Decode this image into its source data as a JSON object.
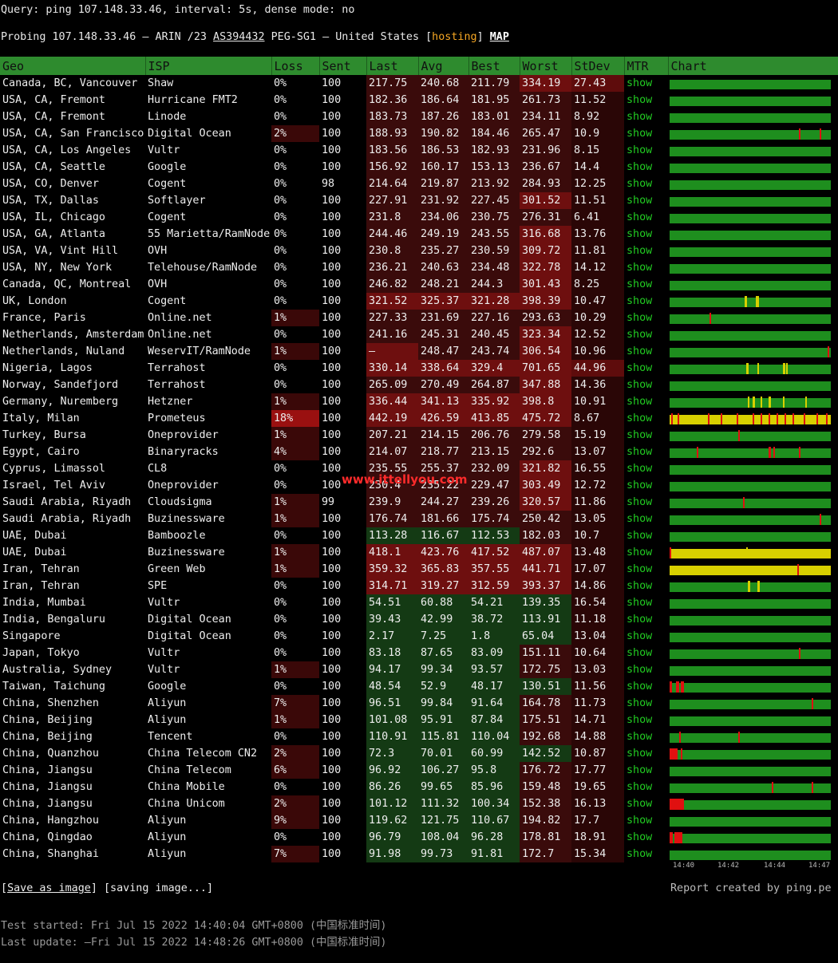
{
  "query_line": "Query: ping 107.148.33.46, interval: 5s, dense mode: no",
  "probe": {
    "prefix": "Probing 107.148.33.46 – ARIN /23 ",
    "as": "AS394432",
    "middle": " PEG-SG1 – United States [",
    "hosting": "hosting",
    "close": "] ",
    "map": "MAP"
  },
  "columns": [
    "Geo",
    "ISP",
    "Loss",
    "Sent",
    "Last",
    "Avg",
    "Best",
    "Worst",
    "StDev",
    "MTR",
    "Chart"
  ],
  "mtr_label": "show",
  "colors": {
    "header_bg": "#2e8b2e",
    "green_bg": "#163816",
    "red_bg": "#6e0f0f",
    "loss_bg": "#8a0f0f",
    "chart_green": "#1e8e1e",
    "chart_red": "#e01010",
    "chart_yellow": "#d8d000",
    "link_green": "#22cc22",
    "hosting": "#f5a623"
  },
  "rows": [
    {
      "geo": "Canada, BC, Vancouver",
      "isp": "Shaw",
      "loss": "0%",
      "sent": "100",
      "last": "217.75",
      "avg": "240.68",
      "best": "211.79",
      "worst": "334.19",
      "stdev": "27.43"
    },
    {
      "geo": "USA, CA, Fremont",
      "isp": "Hurricane FMT2",
      "loss": "0%",
      "sent": "100",
      "last": "182.36",
      "avg": "186.64",
      "best": "181.95",
      "worst": "261.73",
      "stdev": "11.52"
    },
    {
      "geo": "USA, CA, Fremont",
      "isp": "Linode",
      "loss": "0%",
      "sent": "100",
      "last": "183.73",
      "avg": "187.26",
      "best": "183.01",
      "worst": "234.11",
      "stdev": "8.92"
    },
    {
      "geo": "USA, CA, San Francisco",
      "isp": "Digital Ocean",
      "loss": "2%",
      "sent": "100",
      "last": "188.93",
      "avg": "190.82",
      "best": "184.46",
      "worst": "265.47",
      "stdev": "10.9"
    },
    {
      "geo": "USA, CA, Los Angeles",
      "isp": "Vultr",
      "loss": "0%",
      "sent": "100",
      "last": "183.56",
      "avg": "186.53",
      "best": "182.93",
      "worst": "231.96",
      "stdev": "8.15"
    },
    {
      "geo": "USA, CA, Seattle",
      "isp": "Google",
      "loss": "0%",
      "sent": "100",
      "last": "156.92",
      "avg": "160.17",
      "best": "153.13",
      "worst": "236.67",
      "stdev": "14.4"
    },
    {
      "geo": "USA, CO, Denver",
      "isp": "Cogent",
      "loss": "0%",
      "sent": "98",
      "last": "214.64",
      "avg": "219.87",
      "best": "213.92",
      "worst": "284.93",
      "stdev": "12.25"
    },
    {
      "geo": "USA, TX, Dallas",
      "isp": "Softlayer",
      "loss": "0%",
      "sent": "100",
      "last": "227.91",
      "avg": "231.92",
      "best": "227.45",
      "worst": "301.52",
      "stdev": "11.51"
    },
    {
      "geo": "USA, IL, Chicago",
      "isp": "Cogent",
      "loss": "0%",
      "sent": "100",
      "last": "231.8",
      "avg": "234.06",
      "best": "230.75",
      "worst": "276.31",
      "stdev": "6.41"
    },
    {
      "geo": "USA, GA, Atlanta",
      "isp": "55 Marietta/RamNode",
      "loss": "0%",
      "sent": "100",
      "last": "244.46",
      "avg": "249.19",
      "best": "243.55",
      "worst": "316.68",
      "stdev": "13.76"
    },
    {
      "geo": "USA, VA, Vint Hill",
      "isp": "OVH",
      "loss": "0%",
      "sent": "100",
      "last": "230.8",
      "avg": "235.27",
      "best": "230.59",
      "worst": "309.72",
      "stdev": "11.81"
    },
    {
      "geo": "USA, NY, New York",
      "isp": "Telehouse/RamNode",
      "loss": "0%",
      "sent": "100",
      "last": "236.21",
      "avg": "240.63",
      "best": "234.48",
      "worst": "322.78",
      "stdev": "14.12"
    },
    {
      "geo": "Canada, QC, Montreal",
      "isp": "OVH",
      "loss": "0%",
      "sent": "100",
      "last": "246.82",
      "avg": "248.21",
      "best": "244.3",
      "worst": "301.43",
      "stdev": "8.25"
    },
    {
      "geo": "UK, London",
      "isp": "Cogent",
      "loss": "0%",
      "sent": "100",
      "last": "321.52",
      "avg": "325.37",
      "best": "321.28",
      "worst": "398.39",
      "stdev": "10.47"
    },
    {
      "geo": "France, Paris",
      "isp": "Online.net",
      "loss": "1%",
      "sent": "100",
      "last": "227.33",
      "avg": "231.69",
      "best": "227.16",
      "worst": "293.63",
      "stdev": "10.29"
    },
    {
      "geo": "Netherlands, Amsterdam",
      "isp": "Online.net",
      "loss": "0%",
      "sent": "100",
      "last": "241.16",
      "avg": "245.31",
      "best": "240.45",
      "worst": "323.34",
      "stdev": "12.52"
    },
    {
      "geo": "Netherlands, Nuland",
      "isp": "WeservIT/RamNode",
      "loss": "1%",
      "sent": "100",
      "last": "–",
      "avg": "248.47",
      "best": "243.74",
      "worst": "306.54",
      "stdev": "10.96"
    },
    {
      "geo": "Nigeria, Lagos",
      "isp": "Terrahost",
      "loss": "0%",
      "sent": "100",
      "last": "330.14",
      "avg": "338.64",
      "best": "329.4",
      "worst": "701.65",
      "stdev": "44.96"
    },
    {
      "geo": "Norway, Sandefjord",
      "isp": "Terrahost",
      "loss": "0%",
      "sent": "100",
      "last": "265.09",
      "avg": "270.49",
      "best": "264.87",
      "worst": "347.88",
      "stdev": "14.36"
    },
    {
      "geo": "Germany, Nuremberg",
      "isp": "Hetzner",
      "loss": "1%",
      "sent": "100",
      "last": "336.44",
      "avg": "341.13",
      "best": "335.92",
      "worst": "398.8",
      "stdev": "10.91"
    },
    {
      "geo": "Italy, Milan",
      "isp": "Prometeus",
      "loss": "18%",
      "sent": "100",
      "last": "442.19",
      "avg": "426.59",
      "best": "413.85",
      "worst": "475.72",
      "stdev": "8.67"
    },
    {
      "geo": "Turkey, Bursa",
      "isp": "Oneprovider",
      "loss": "1%",
      "sent": "100",
      "last": "207.21",
      "avg": "214.15",
      "best": "206.76",
      "worst": "279.58",
      "stdev": "15.19"
    },
    {
      "geo": "Egypt, Cairo",
      "isp": "Binaryracks",
      "loss": "4%",
      "sent": "100",
      "last": "214.07",
      "avg": "218.77",
      "best": "213.15",
      "worst": "292.6",
      "stdev": "13.07"
    },
    {
      "geo": "Cyprus, Limassol",
      "isp": "CL8",
      "loss": "0%",
      "sent": "100",
      "last": "235.55",
      "avg": "255.37",
      "best": "232.09",
      "worst": "321.82",
      "stdev": "16.55"
    },
    {
      "geo": "Israel, Tel Aviv",
      "isp": "Oneprovider",
      "loss": "0%",
      "sent": "100",
      "last": "230.4",
      "avg": "235.22",
      "best": "229.47",
      "worst": "303.49",
      "stdev": "12.72"
    },
    {
      "geo": "Saudi Arabia, Riyadh",
      "isp": "Cloudsigma",
      "loss": "1%",
      "sent": "99",
      "last": "239.9",
      "avg": "244.27",
      "best": "239.26",
      "worst": "320.57",
      "stdev": "11.86"
    },
    {
      "geo": "Saudi Arabia, Riyadh",
      "isp": "Buzinessware",
      "loss": "1%",
      "sent": "100",
      "last": "176.74",
      "avg": "181.66",
      "best": "175.74",
      "worst": "250.42",
      "stdev": "13.05"
    },
    {
      "geo": "UAE, Dubai",
      "isp": "Bamboozle",
      "loss": "0%",
      "sent": "100",
      "last": "113.28",
      "avg": "116.67",
      "best": "112.53",
      "worst": "182.03",
      "stdev": "10.7"
    },
    {
      "geo": "UAE, Dubai",
      "isp": "Buzinessware",
      "loss": "1%",
      "sent": "100",
      "last": "418.1",
      "avg": "423.76",
      "best": "417.52",
      "worst": "487.07",
      "stdev": "13.48"
    },
    {
      "geo": "Iran, Tehran",
      "isp": "Green Web",
      "loss": "1%",
      "sent": "100",
      "last": "359.32",
      "avg": "365.83",
      "best": "357.55",
      "worst": "441.71",
      "stdev": "17.07"
    },
    {
      "geo": "Iran, Tehran",
      "isp": "SPE",
      "loss": "0%",
      "sent": "100",
      "last": "314.71",
      "avg": "319.27",
      "best": "312.59",
      "worst": "393.37",
      "stdev": "14.86"
    },
    {
      "geo": "India, Mumbai",
      "isp": "Vultr",
      "loss": "0%",
      "sent": "100",
      "last": "54.51",
      "avg": "60.88",
      "best": "54.21",
      "worst": "139.35",
      "stdev": "16.54"
    },
    {
      "geo": "India, Bengaluru",
      "isp": "Digital Ocean",
      "loss": "0%",
      "sent": "100",
      "last": "39.43",
      "avg": "42.99",
      "best": "38.72",
      "worst": "113.91",
      "stdev": "11.18"
    },
    {
      "geo": "Singapore",
      "isp": "Digital Ocean",
      "loss": "0%",
      "sent": "100",
      "last": "2.17",
      "avg": "7.25",
      "best": "1.8",
      "worst": "65.04",
      "stdev": "13.04"
    },
    {
      "geo": "Japan, Tokyo",
      "isp": "Vultr",
      "loss": "0%",
      "sent": "100",
      "last": "83.18",
      "avg": "87.65",
      "best": "83.09",
      "worst": "151.11",
      "stdev": "10.64"
    },
    {
      "geo": "Australia, Sydney",
      "isp": "Vultr",
      "loss": "1%",
      "sent": "100",
      "last": "94.17",
      "avg": "99.34",
      "best": "93.57",
      "worst": "172.75",
      "stdev": "13.03"
    },
    {
      "geo": "Taiwan, Taichung",
      "isp": "Google",
      "loss": "0%",
      "sent": "100",
      "last": "48.54",
      "avg": "52.9",
      "best": "48.17",
      "worst": "130.51",
      "stdev": "11.56"
    },
    {
      "geo": "China, Shenzhen",
      "isp": "Aliyun",
      "loss": "7%",
      "sent": "100",
      "last": "96.51",
      "avg": "99.84",
      "best": "91.64",
      "worst": "164.78",
      "stdev": "11.73"
    },
    {
      "geo": "China, Beijing",
      "isp": "Aliyun",
      "loss": "1%",
      "sent": "100",
      "last": "101.08",
      "avg": "95.91",
      "best": "87.84",
      "worst": "175.51",
      "stdev": "14.71"
    },
    {
      "geo": "China, Beijing",
      "isp": "Tencent",
      "loss": "0%",
      "sent": "100",
      "last": "110.91",
      "avg": "115.81",
      "best": "110.04",
      "worst": "192.68",
      "stdev": "14.88"
    },
    {
      "geo": "China, Quanzhou",
      "isp": "China Telecom CN2",
      "loss": "2%",
      "sent": "100",
      "last": "72.3",
      "avg": "70.01",
      "best": "60.99",
      "worst": "142.52",
      "stdev": "10.87"
    },
    {
      "geo": "China, Jiangsu",
      "isp": "China Telecom",
      "loss": "6%",
      "sent": "100",
      "last": "96.92",
      "avg": "106.27",
      "best": "95.8",
      "worst": "176.72",
      "stdev": "17.77"
    },
    {
      "geo": "China, Jiangsu",
      "isp": "China Mobile",
      "loss": "0%",
      "sent": "100",
      "last": "86.26",
      "avg": "99.65",
      "best": "85.96",
      "worst": "159.48",
      "stdev": "19.65"
    },
    {
      "geo": "China, Jiangsu",
      "isp": "China Unicom",
      "loss": "2%",
      "sent": "100",
      "last": "101.12",
      "avg": "111.32",
      "best": "100.34",
      "worst": "152.38",
      "stdev": "16.13"
    },
    {
      "geo": "China, Hangzhou",
      "isp": "Aliyun",
      "loss": "9%",
      "sent": "100",
      "last": "119.62",
      "avg": "121.75",
      "best": "110.67",
      "worst": "194.82",
      "stdev": "17.7"
    },
    {
      "geo": "China, Qingdao",
      "isp": "Aliyun",
      "loss": "0%",
      "sent": "100",
      "last": "96.79",
      "avg": "108.04",
      "best": "96.28",
      "worst": "178.81",
      "stdev": "18.91"
    },
    {
      "geo": "China, Shanghai",
      "isp": "Aliyun",
      "loss": "7%",
      "sent": "100",
      "last": "91.98",
      "avg": "99.73",
      "best": "91.81",
      "worst": "172.7",
      "stdev": "15.34"
    }
  ],
  "chart_axis": [
    "14:40",
    "14:42",
    "14:44",
    "14:47"
  ],
  "footer": {
    "save_link": "Save as image",
    "saving": "[saving image...]",
    "report": "Report created by ping.pe",
    "started": "Test started: Fri Jul 15 2022 14:40:04 GMT+0800 (中国标准时间)",
    "updated": "Last update: –Fri Jul 15 2022 14:48:26 GMT+0800 (中国标准时间)",
    "watermark": "www.ittellyou.com"
  }
}
